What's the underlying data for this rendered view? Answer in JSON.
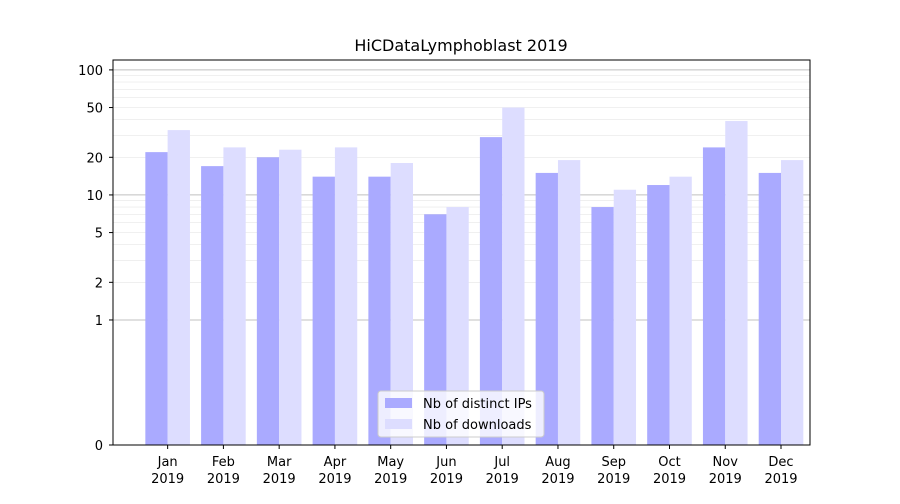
{
  "chart_data": {
    "type": "bar",
    "title": "HiCDataLymphoblast 2019",
    "xlabel": "",
    "ylabel": "",
    "yscale": "symlog",
    "ylim": [
      0,
      120
    ],
    "yticks": [
      0,
      1,
      2,
      5,
      10,
      20,
      50,
      100
    ],
    "ytick_labels": [
      "0",
      "1",
      "2",
      "5",
      "10",
      "20",
      "50",
      "100"
    ],
    "grid": true,
    "legend_position": "bottom-center",
    "categories": [
      "Jan\n2019",
      "Feb\n2019",
      "Mar\n2019",
      "Apr\n2019",
      "May\n2019",
      "Jun\n2019",
      "Jul\n2019",
      "Aug\n2019",
      "Sep\n2019",
      "Oct\n2019",
      "Nov\n2019",
      "Dec\n2019"
    ],
    "series": [
      {
        "name": "Nb of distinct IPs",
        "color": "#aaaaff",
        "values": [
          22,
          17,
          20,
          14,
          14,
          7,
          29,
          15,
          8,
          12,
          24,
          15
        ]
      },
      {
        "name": "Nb of downloads",
        "color": "#ddddff",
        "values": [
          33,
          24,
          23,
          24,
          18,
          8,
          50,
          19,
          11,
          14,
          39,
          19
        ]
      }
    ]
  }
}
